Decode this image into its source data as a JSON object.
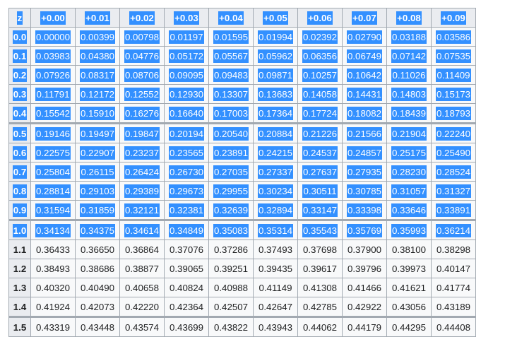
{
  "table": {
    "headers": [
      "z",
      "+0.00",
      "+0.01",
      "+0.02",
      "+0.03",
      "+0.04",
      "+0.05",
      "+0.06",
      "+0.07",
      "+0.08",
      "+0.09"
    ],
    "rows": [
      {
        "z": "0.0",
        "values": [
          "0.00000",
          "0.00399",
          "0.00798",
          "0.01197",
          "0.01595",
          "0.01994",
          "0.02392",
          "0.02790",
          "0.03188",
          "0.03586"
        ]
      },
      {
        "z": "0.1",
        "values": [
          "0.03983",
          "0.04380",
          "0.04776",
          "0.05172",
          "0.05567",
          "0.05962",
          "0.06356",
          "0.06749",
          "0.07142",
          "0.07535"
        ]
      },
      {
        "z": "0.2",
        "values": [
          "0.07926",
          "0.08317",
          "0.08706",
          "0.09095",
          "0.09483",
          "0.09871",
          "0.10257",
          "0.10642",
          "0.11026",
          "0.11409"
        ]
      },
      {
        "z": "0.3",
        "values": [
          "0.11791",
          "0.12172",
          "0.12552",
          "0.12930",
          "0.13307",
          "0.13683",
          "0.14058",
          "0.14431",
          "0.14803",
          "0.15173"
        ]
      },
      {
        "z": "0.4",
        "values": [
          "0.15542",
          "0.15910",
          "0.16276",
          "0.16640",
          "0.17003",
          "0.17364",
          "0.17724",
          "0.18082",
          "0.18439",
          "0.18793"
        ]
      },
      {
        "z": "0.5",
        "values": [
          "0.19146",
          "0.19497",
          "0.19847",
          "0.20194",
          "0.20540",
          "0.20884",
          "0.21226",
          "0.21566",
          "0.21904",
          "0.22240"
        ]
      },
      {
        "z": "0.6",
        "values": [
          "0.22575",
          "0.22907",
          "0.23237",
          "0.23565",
          "0.23891",
          "0.24215",
          "0.24537",
          "0.24857",
          "0.25175",
          "0.25490"
        ]
      },
      {
        "z": "0.7",
        "values": [
          "0.25804",
          "0.26115",
          "0.26424",
          "0.26730",
          "0.27035",
          "0.27337",
          "0.27637",
          "0.27935",
          "0.28230",
          "0.28524"
        ]
      },
      {
        "z": "0.8",
        "values": [
          "0.28814",
          "0.29103",
          "0.29389",
          "0.29673",
          "0.29955",
          "0.30234",
          "0.30511",
          "0.30785",
          "0.31057",
          "0.31327"
        ]
      },
      {
        "z": "0.9",
        "values": [
          "0.31594",
          "0.31859",
          "0.32121",
          "0.32381",
          "0.32639",
          "0.32894",
          "0.33147",
          "0.33398",
          "0.33646",
          "0.33891"
        ]
      },
      {
        "z": "1.0",
        "values": [
          "0.34134",
          "0.34375",
          "0.34614",
          "0.34849",
          "0.35083",
          "0.35314",
          "0.35543",
          "0.35769",
          "0.35993",
          "0.36214"
        ]
      },
      {
        "z": "1.1",
        "values": [
          "0.36433",
          "0.36650",
          "0.36864",
          "0.37076",
          "0.37286",
          "0.37493",
          "0.37698",
          "0.37900",
          "0.38100",
          "0.38298"
        ]
      },
      {
        "z": "1.2",
        "values": [
          "0.38493",
          "0.38686",
          "0.38877",
          "0.39065",
          "0.39251",
          "0.39435",
          "0.39617",
          "0.39796",
          "0.39973",
          "0.40147"
        ]
      },
      {
        "z": "1.3",
        "values": [
          "0.40320",
          "0.40490",
          "0.40658",
          "0.40824",
          "0.40988",
          "0.41149",
          "0.41308",
          "0.41466",
          "0.41621",
          "0.41774"
        ]
      },
      {
        "z": "1.4",
        "values": [
          "0.41924",
          "0.42073",
          "0.42220",
          "0.42364",
          "0.42507",
          "0.42647",
          "0.42785",
          "0.42922",
          "0.43056",
          "0.43189"
        ]
      },
      {
        "z": "1.5",
        "values": [
          "0.43319",
          "0.43448",
          "0.43574",
          "0.43699",
          "0.43822",
          "0.43943",
          "0.44062",
          "0.44179",
          "0.44295",
          "0.44408"
        ]
      }
    ],
    "selected_rows_through": "1.0"
  },
  "colors": {
    "selection": "#3390ff",
    "header_bg": "#eaecf0",
    "cell_bg": "#f8f9fa",
    "border": "#a2a9b1"
  }
}
